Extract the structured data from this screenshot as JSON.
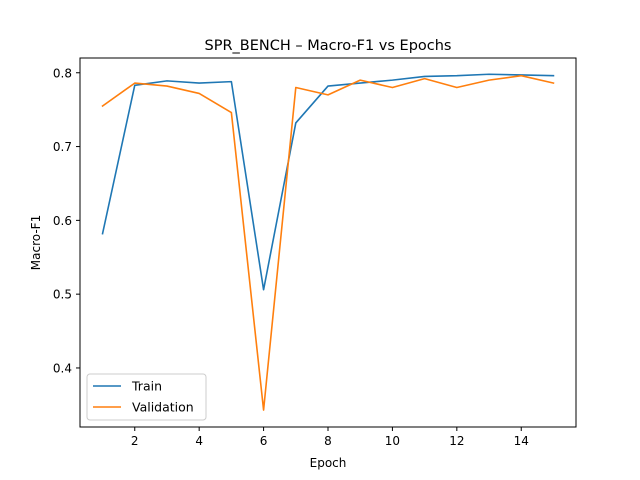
{
  "chart_data": {
    "type": "line",
    "title": "SPR_BENCH – Macro-F1 vs Epochs",
    "xlabel": "Epoch",
    "ylabel": "Macro-F1",
    "x": [
      1,
      2,
      3,
      4,
      5,
      6,
      7,
      8,
      9,
      10,
      11,
      12,
      13,
      14,
      15
    ],
    "xlim": [
      0.3,
      15.7
    ],
    "ylim": [
      0.32,
      0.82
    ],
    "xticks": [
      2,
      4,
      6,
      8,
      10,
      12,
      14
    ],
    "yticks": [
      0.4,
      0.5,
      0.6,
      0.7,
      0.8
    ],
    "xtick_labels": [
      "2",
      "4",
      "6",
      "8",
      "10",
      "12",
      "14"
    ],
    "ytick_labels": [
      "0.4",
      "0.5",
      "0.6",
      "0.7",
      "0.8"
    ],
    "grid": false,
    "legend": "bottom-left",
    "series": [
      {
        "name": "Train",
        "color": "#1f77b4",
        "values": [
          0.582,
          0.783,
          0.789,
          0.786,
          0.788,
          0.506,
          0.732,
          0.782,
          0.786,
          0.79,
          0.795,
          0.796,
          0.798,
          0.797,
          0.796
        ]
      },
      {
        "name": "Validation",
        "color": "#ff7f0e",
        "values": [
          0.755,
          0.786,
          0.782,
          0.772,
          0.746,
          0.343,
          0.78,
          0.77,
          0.79,
          0.78,
          0.792,
          0.78,
          0.79,
          0.796,
          0.786
        ]
      }
    ]
  }
}
